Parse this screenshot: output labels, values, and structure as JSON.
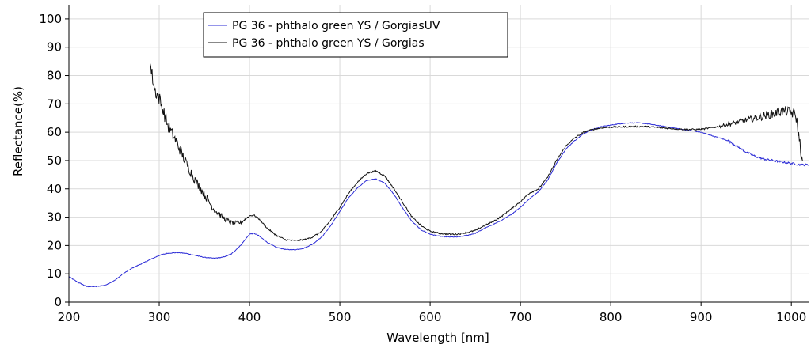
{
  "chart_data": {
    "type": "line",
    "xlabel": "Wavelength [nm]",
    "ylabel": "Reflectance(%)",
    "xlim": [
      200,
      1020
    ],
    "ylim": [
      0,
      105
    ],
    "x_ticks": [
      200,
      300,
      400,
      500,
      600,
      700,
      800,
      900,
      1000
    ],
    "y_ticks": [
      0,
      10,
      20,
      30,
      40,
      50,
      60,
      70,
      80,
      90,
      100
    ],
    "grid": true,
    "legend_position": "top-center",
    "series": [
      {
        "name": "PG 36 - phthalo green YS / GorgiasUV",
        "color": "#2b2bd6",
        "points": [
          [
            200,
            9
          ],
          [
            210,
            7
          ],
          [
            220,
            5.5
          ],
          [
            230,
            5.5
          ],
          [
            240,
            6
          ],
          [
            250,
            7.5
          ],
          [
            260,
            10
          ],
          [
            270,
            12
          ],
          [
            280,
            13.5
          ],
          [
            290,
            15
          ],
          [
            300,
            16.5
          ],
          [
            310,
            17.3
          ],
          [
            320,
            17.5
          ],
          [
            330,
            17.2
          ],
          [
            340,
            16.5
          ],
          [
            350,
            15.8
          ],
          [
            360,
            15.5
          ],
          [
            370,
            15.8
          ],
          [
            380,
            17
          ],
          [
            390,
            20
          ],
          [
            400,
            24
          ],
          [
            405,
            24.3
          ],
          [
            410,
            23.5
          ],
          [
            420,
            21
          ],
          [
            430,
            19.3
          ],
          [
            440,
            18.6
          ],
          [
            450,
            18.5
          ],
          [
            460,
            19
          ],
          [
            470,
            20.5
          ],
          [
            480,
            23
          ],
          [
            490,
            27
          ],
          [
            500,
            32
          ],
          [
            510,
            37
          ],
          [
            520,
            40.5
          ],
          [
            530,
            43
          ],
          [
            540,
            43.5
          ],
          [
            550,
            42
          ],
          [
            560,
            38
          ],
          [
            570,
            33
          ],
          [
            580,
            28.5
          ],
          [
            590,
            25.5
          ],
          [
            600,
            24
          ],
          [
            610,
            23.3
          ],
          [
            620,
            23
          ],
          [
            630,
            23
          ],
          [
            640,
            23.5
          ],
          [
            650,
            24.3
          ],
          [
            660,
            26
          ],
          [
            670,
            27.5
          ],
          [
            680,
            29
          ],
          [
            690,
            31
          ],
          [
            700,
            33.5
          ],
          [
            710,
            36.5
          ],
          [
            720,
            39
          ],
          [
            730,
            43
          ],
          [
            740,
            49
          ],
          [
            750,
            54
          ],
          [
            760,
            57
          ],
          [
            770,
            59.5
          ],
          [
            780,
            61
          ],
          [
            790,
            62
          ],
          [
            800,
            62.5
          ],
          [
            810,
            63
          ],
          [
            820,
            63.3
          ],
          [
            830,
            63.3
          ],
          [
            840,
            63
          ],
          [
            850,
            62.5
          ],
          [
            860,
            62
          ],
          [
            870,
            61.5
          ],
          [
            880,
            61
          ],
          [
            890,
            60.5
          ],
          [
            900,
            60
          ],
          [
            910,
            59
          ],
          [
            920,
            58
          ],
          [
            930,
            57
          ],
          [
            940,
            55
          ],
          [
            950,
            53
          ],
          [
            960,
            51.5
          ],
          [
            970,
            50.5
          ],
          [
            980,
            50
          ],
          [
            990,
            49.5
          ],
          [
            1000,
            49
          ],
          [
            1010,
            48.5
          ],
          [
            1020,
            48.5
          ]
        ]
      },
      {
        "name": "PG 36 - phthalo green YS / Gorgias",
        "color": "#111111",
        "points": [
          [
            290,
            84
          ],
          [
            295,
            75
          ],
          [
            300,
            72
          ],
          [
            310,
            62
          ],
          [
            320,
            56
          ],
          [
            330,
            49
          ],
          [
            340,
            43
          ],
          [
            350,
            38
          ],
          [
            360,
            33
          ],
          [
            370,
            30
          ],
          [
            380,
            28
          ],
          [
            390,
            28
          ],
          [
            400,
            30.5
          ],
          [
            405,
            30.7
          ],
          [
            410,
            29.5
          ],
          [
            420,
            26
          ],
          [
            430,
            23.5
          ],
          [
            440,
            22
          ],
          [
            450,
            21.7
          ],
          [
            460,
            22
          ],
          [
            470,
            23
          ],
          [
            480,
            25
          ],
          [
            490,
            29
          ],
          [
            500,
            33.5
          ],
          [
            510,
            38.5
          ],
          [
            520,
            42.5
          ],
          [
            530,
            45.5
          ],
          [
            540,
            46.3
          ],
          [
            550,
            44.5
          ],
          [
            560,
            40
          ],
          [
            570,
            35
          ],
          [
            580,
            30
          ],
          [
            590,
            27
          ],
          [
            600,
            25
          ],
          [
            610,
            24.3
          ],
          [
            620,
            24
          ],
          [
            630,
            24
          ],
          [
            640,
            24.5
          ],
          [
            650,
            25.3
          ],
          [
            660,
            27
          ],
          [
            670,
            28.5
          ],
          [
            680,
            30.5
          ],
          [
            690,
            33
          ],
          [
            700,
            35.5
          ],
          [
            710,
            38.5
          ],
          [
            720,
            40
          ],
          [
            730,
            44
          ],
          [
            740,
            50
          ],
          [
            750,
            55
          ],
          [
            760,
            58
          ],
          [
            770,
            60
          ],
          [
            780,
            61
          ],
          [
            790,
            61.5
          ],
          [
            800,
            61.8
          ],
          [
            820,
            62
          ],
          [
            840,
            62
          ],
          [
            860,
            61.5
          ],
          [
            880,
            61
          ],
          [
            900,
            61
          ],
          [
            920,
            62
          ],
          [
            940,
            63.5
          ],
          [
            960,
            65
          ],
          [
            980,
            66.5
          ],
          [
            990,
            67.5
          ],
          [
            1000,
            67
          ],
          [
            1005,
            66
          ],
          [
            1010,
            55
          ],
          [
            1013,
            47
          ]
        ]
      }
    ]
  }
}
